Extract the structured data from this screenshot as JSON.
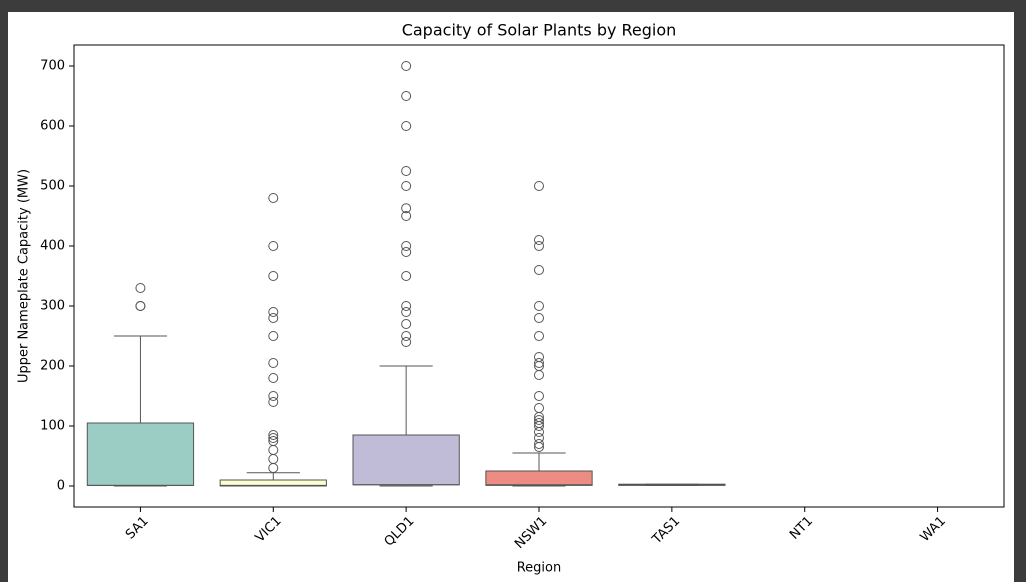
{
  "chart_data": {
    "type": "box",
    "title": "Capacity of Solar Plants by Region",
    "x_label": "Region",
    "y_label": "Upper Nameplate Capacity (MW)",
    "categories": [
      "SA1",
      "VIC1",
      "QLD1",
      "NSW1",
      "TAS1",
      "NT1",
      "WA1"
    ],
    "colors": [
      "#9ccdc5",
      "#fdfdcf",
      "#c0bcd8",
      "#ec8c82",
      "#8fb2ce",
      "#f0b673",
      "#b6d67e"
    ],
    "stats": [
      {
        "min": 0,
        "q1": 1,
        "median": 1,
        "q3": 105,
        "max": 250,
        "outliers": [
          300,
          300,
          330
        ]
      },
      {
        "min": 0,
        "q1": 0,
        "median": 1,
        "q3": 10,
        "max": 22,
        "outliers": [
          30,
          45,
          60,
          75,
          80,
          85,
          140,
          150,
          180,
          205,
          250,
          280,
          290,
          350,
          400,
          480
        ]
      },
      {
        "min": 0,
        "q1": 2,
        "median": 2,
        "q3": 85,
        "max": 200,
        "outliers": [
          240,
          250,
          270,
          290,
          300,
          350,
          390,
          400,
          450,
          463,
          500,
          525,
          600,
          650,
          700
        ]
      },
      {
        "min": 0,
        "q1": 1,
        "median": 2,
        "q3": 25,
        "max": 55,
        "outliers": [
          65,
          70,
          80,
          90,
          100,
          105,
          110,
          115,
          130,
          150,
          185,
          200,
          205,
          215,
          250,
          280,
          300,
          360,
          400,
          410,
          500
        ]
      },
      {
        "min": 1,
        "q1": 1,
        "median": 2,
        "q3": 3,
        "max": 3,
        "outliers": []
      },
      null,
      null
    ],
    "ylim": [
      -35,
      735
    ],
    "yticks": [
      0,
      100,
      200,
      300,
      400,
      500,
      600,
      700
    ]
  }
}
